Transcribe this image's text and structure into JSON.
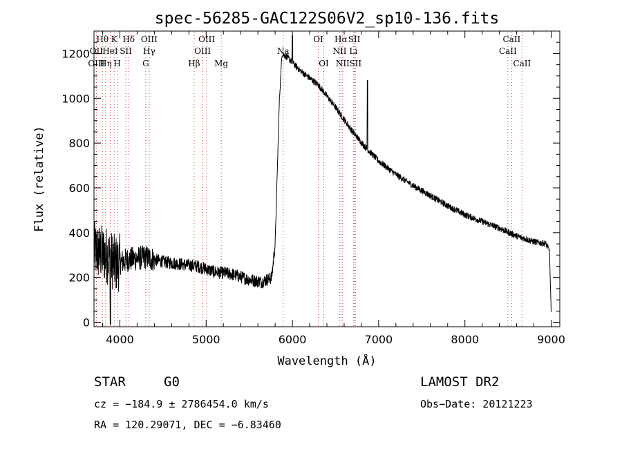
{
  "chart_data": {
    "type": "line",
    "title": "spec-56285-GAC122S06V2_sp10-136.fits",
    "xlabel": "Wavelength (Å)",
    "ylabel": "Flux (relative)",
    "xlim": [
      3700,
      9100
    ],
    "ylim": [
      -20,
      1300
    ],
    "x_ticks": [
      4000,
      5000,
      6000,
      7000,
      8000,
      9000
    ],
    "x_minor_step": 200,
    "y_ticks": [
      0,
      200,
      400,
      600,
      800,
      1000,
      1200
    ],
    "y_minor_step": 50,
    "line_color": "#000000",
    "marker_color": "#d04040",
    "spectrum_keypoints": [
      [
        3700,
        320
      ],
      [
        3850,
        300
      ],
      [
        3950,
        260
      ],
      [
        4100,
        280
      ],
      [
        4300,
        290
      ],
      [
        4500,
        270
      ],
      [
        4700,
        260
      ],
      [
        4900,
        250
      ],
      [
        5100,
        225
      ],
      [
        5300,
        215
      ],
      [
        5500,
        190
      ],
      [
        5650,
        180
      ],
      [
        5760,
        200
      ],
      [
        5800,
        350
      ],
      [
        5850,
        1000
      ],
      [
        5880,
        1200
      ],
      [
        5950,
        1180
      ],
      [
        6100,
        1120
      ],
      [
        6300,
        1060
      ],
      [
        6500,
        960
      ],
      [
        6700,
        850
      ],
      [
        6850,
        780
      ],
      [
        7000,
        720
      ],
      [
        7200,
        660
      ],
      [
        7400,
        610
      ],
      [
        7600,
        565
      ],
      [
        7800,
        520
      ],
      [
        8000,
        480
      ],
      [
        8200,
        450
      ],
      [
        8400,
        420
      ],
      [
        8600,
        385
      ],
      [
        8800,
        360
      ],
      [
        8940,
        350
      ],
      [
        8980,
        320
      ],
      [
        9000,
        40
      ]
    ],
    "spectrum_features": [
      {
        "x": 3890,
        "y": -10
      },
      {
        "x": 6000,
        "y": 1280
      },
      {
        "x": 6870,
        "y": 1080
      }
    ],
    "lines": [
      {
        "label": "Hθ",
        "x": 3798,
        "row": 0
      },
      {
        "label": "K",
        "x": 3934,
        "row": 0
      },
      {
        "label": "Hδ",
        "x": 4102,
        "row": 0
      },
      {
        "label": "OIII",
        "x": 4340,
        "row": 0
      },
      {
        "label": "OIII",
        "x": 5007,
        "row": 0
      },
      {
        "label": "OI",
        "x": 6300,
        "row": 0
      },
      {
        "label": "Hα",
        "x": 6563,
        "row": 0
      },
      {
        "label": "SII",
        "x": 6717,
        "row": 0
      },
      {
        "label": "CaII",
        "x": 8542,
        "row": 0
      },
      {
        "label": "OII",
        "x": 3727,
        "row": 1
      },
      {
        "label": "HeI",
        "x": 3888,
        "row": 1
      },
      {
        "label": "SII",
        "x": 4069,
        "row": 1
      },
      {
        "label": "Hγ",
        "x": 4340,
        "row": 1
      },
      {
        "label": "OIII",
        "x": 4959,
        "row": 1
      },
      {
        "label": "Na",
        "x": 5893,
        "row": 1
      },
      {
        "label": "NII",
        "x": 6548,
        "row": 1
      },
      {
        "label": "Li",
        "x": 6707,
        "row": 1
      },
      {
        "label": "CaII",
        "x": 8498,
        "row": 1
      },
      {
        "label": "OIII",
        "x": 3727,
        "row": 2
      },
      {
        "label": "Hη",
        "x": 3835,
        "row": 2
      },
      {
        "label": "H",
        "x": 3969,
        "row": 2
      },
      {
        "label": "G",
        "x": 4300,
        "row": 2
      },
      {
        "label": "Hβ",
        "x": 4861,
        "row": 2
      },
      {
        "label": "Mg",
        "x": 5175,
        "row": 2
      },
      {
        "label": "OI",
        "x": 6364,
        "row": 2
      },
      {
        "label": "NII",
        "x": 6583,
        "row": 2
      },
      {
        "label": "SII",
        "x": 6731,
        "row": 2
      },
      {
        "label": "CaII",
        "x": 8662,
        "row": 2
      }
    ]
  },
  "footer": {
    "object_class": "STAR",
    "subclass": "G0",
    "survey": "LAMOST DR2",
    "cz": "cz = −184.9 ± 2786454.0 km/s",
    "obs_date": "Obs−Date: 20121223",
    "coords": "RA = 120.29071, DEC =  −6.83460"
  }
}
